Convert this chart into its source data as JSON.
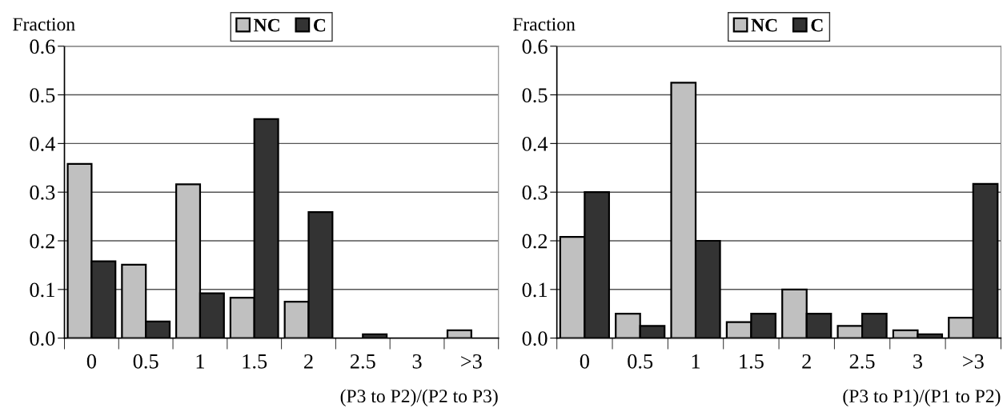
{
  "chart_data": [
    {
      "type": "bar",
      "categories": [
        "0",
        "0.5",
        "1",
        "1.5",
        "2",
        "2.5",
        "3",
        ">3"
      ],
      "ylabel": "Fraction",
      "xlabel": "(P3 to P2)/(P2 to P3)",
      "ylim": [
        0,
        0.6
      ],
      "yticks": [
        {
          "value": 0,
          "label": "0.0"
        },
        0.1,
        0.2,
        0.3,
        0.4,
        0.5,
        0.6
      ],
      "grid": "y",
      "legend": "top",
      "series": [
        {
          "name": "NC",
          "color": "#c0c0c0",
          "values": [
            0.358,
            0.151,
            0.316,
            0.083,
            0.075,
            0,
            0,
            0.016
          ]
        },
        {
          "name": "C",
          "color": "#333333",
          "values": [
            0.158,
            0.034,
            0.092,
            0.45,
            0.259,
            0.008,
            0,
            0
          ]
        }
      ]
    },
    {
      "type": "bar",
      "categories": [
        "0",
        "0.5",
        "1",
        "1.5",
        "2",
        "2.5",
        "3",
        ">3"
      ],
      "ylabel": "Fraction",
      "xlabel": "(P3 to P1)/(P1 to P2)",
      "ylim": [
        0,
        0.6
      ],
      "yticks": [
        {
          "value": 0,
          "label": "0.0"
        },
        0.1,
        0.2,
        0.3,
        0.4,
        0.5,
        0.6
      ],
      "grid": "y",
      "legend": "top",
      "series": [
        {
          "name": "NC",
          "color": "#c0c0c0",
          "values": [
            0.208,
            0.05,
            0.525,
            0.033,
            0.1,
            0.025,
            0.016,
            0.042
          ]
        },
        {
          "name": "C",
          "color": "#333333",
          "values": [
            0.3,
            0.025,
            0.2,
            0.05,
            0.05,
            0.05,
            0.008,
            0.317
          ]
        }
      ]
    }
  ]
}
